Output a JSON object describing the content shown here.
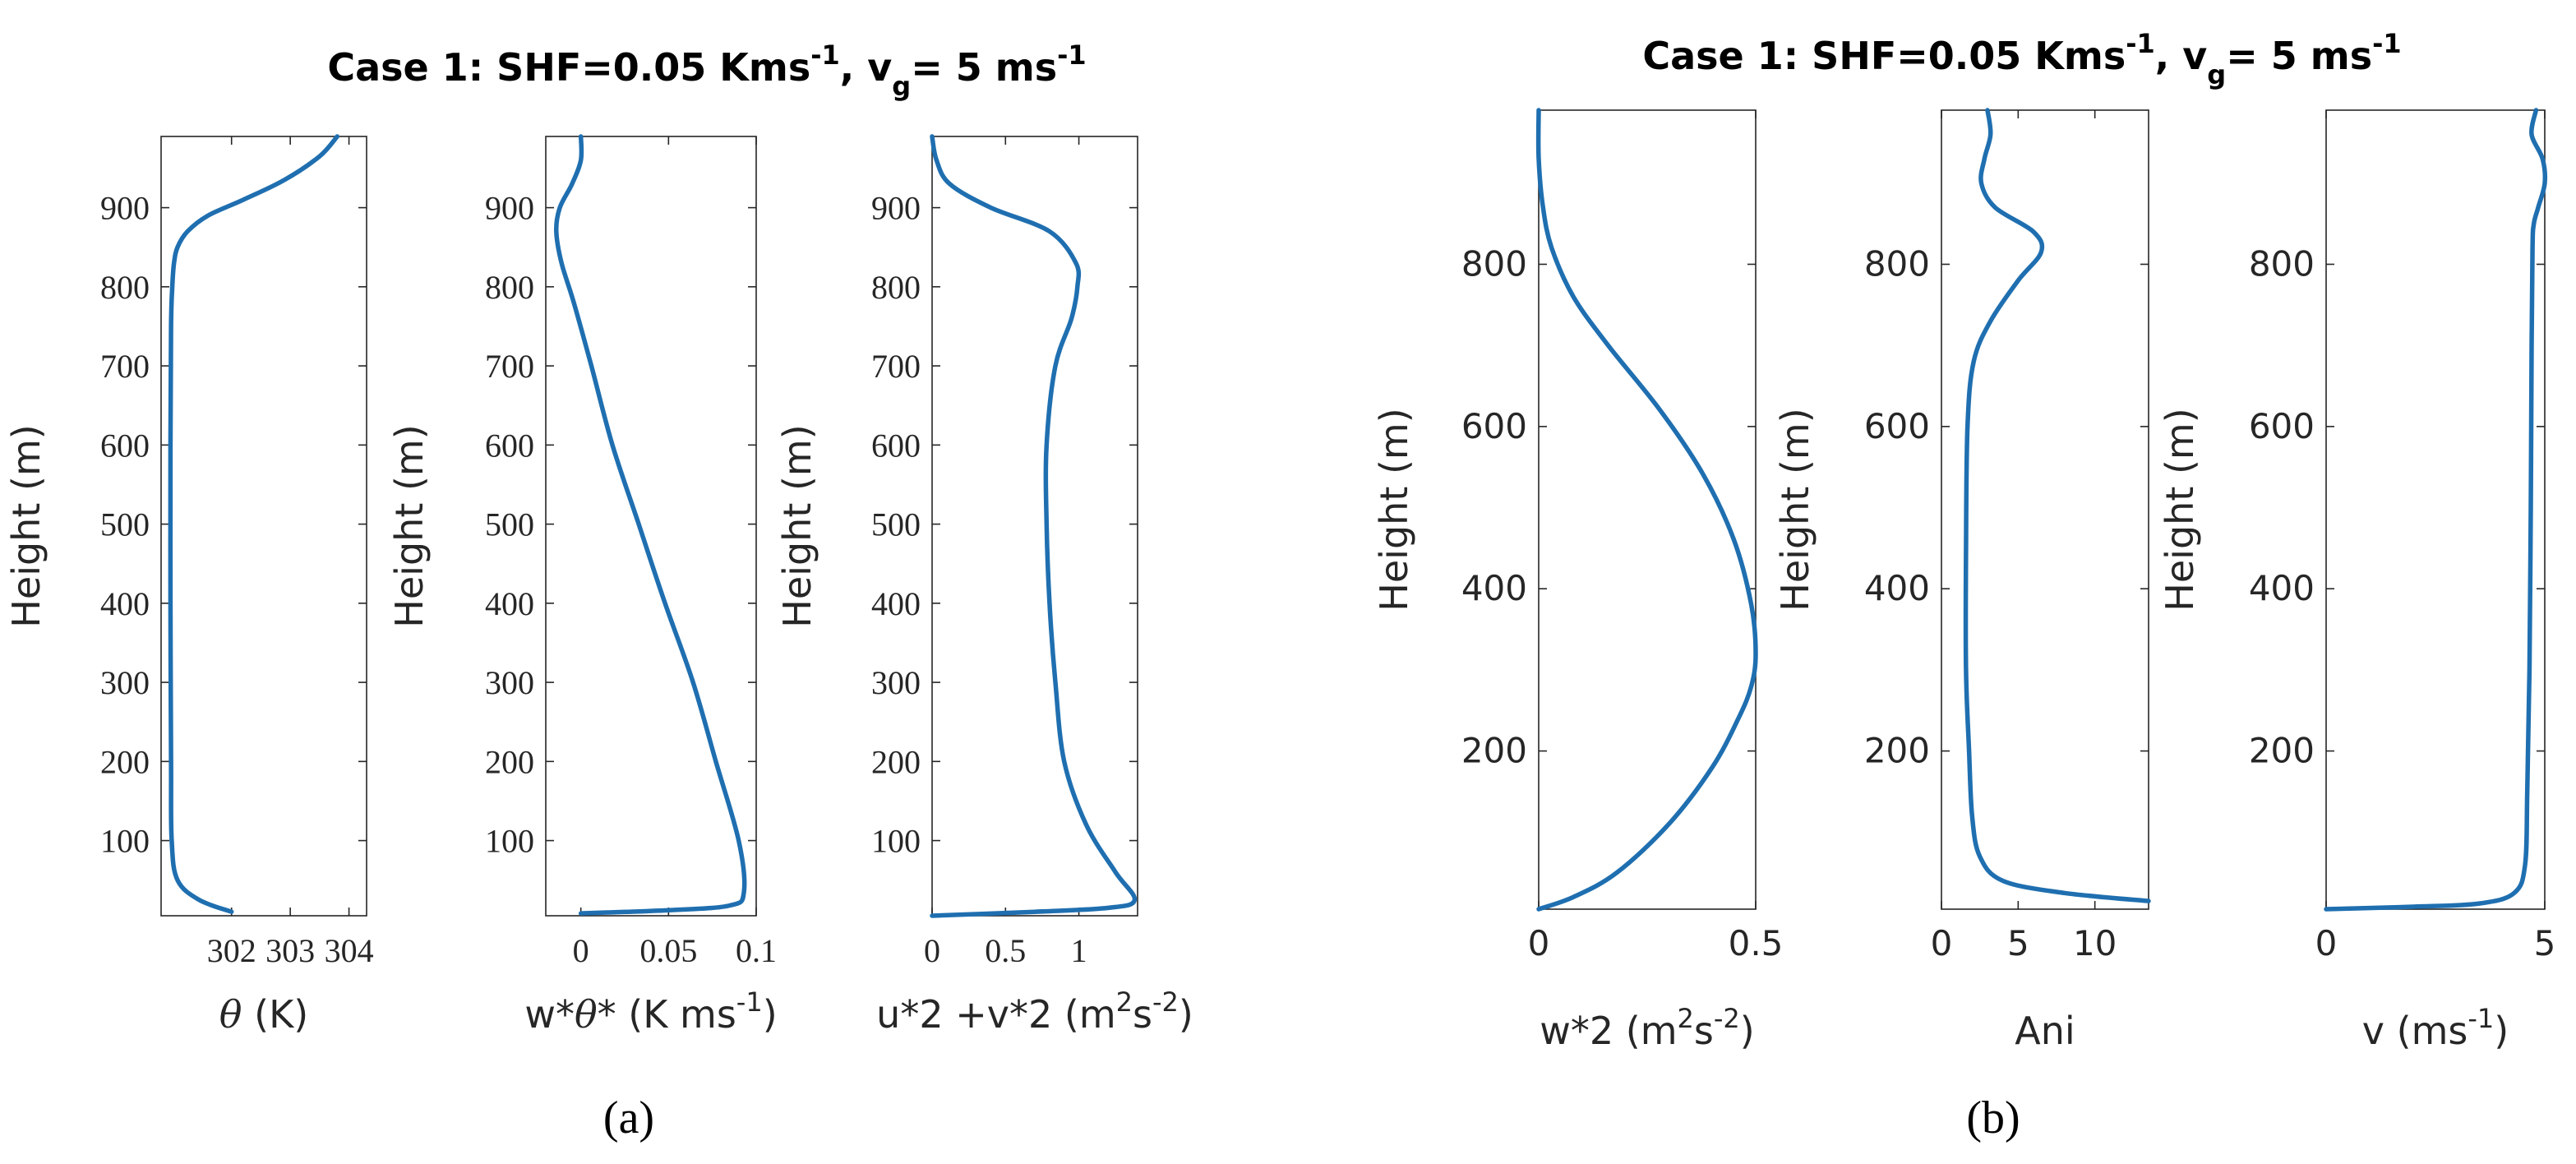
{
  "panel_a": {
    "label": "(a)",
    "title": {
      "main": "Case 1: SHF=0.05 Kms",
      "sup1": "-1",
      "mid": ", v",
      "sub": "g",
      "end": "= 5 ms",
      "sup2": "-1"
    }
  },
  "panel_b": {
    "label": "(b)",
    "title": {
      "main": "Case 1: SHF=0.05 Kms",
      "sup1": "-1",
      "mid": ", v",
      "sub": "g",
      "end": "= 5 ms",
      "sup2": "-1"
    }
  },
  "y_label": "Height (m)",
  "line_color": "#1f6fb0",
  "chart_data": [
    {
      "id": "theta",
      "type": "line",
      "panel": "a",
      "xlabel": {
        "parts": [
          [
            "θ",
            "i"
          ],
          [
            " (K)",
            "n"
          ]
        ]
      },
      "xlim": [
        300.8,
        304.3
      ],
      "ylim": [
        5,
        990
      ],
      "xticks": [
        302,
        303,
        304
      ],
      "xticklabels": [
        "302",
        "303",
        "304"
      ],
      "yticks": [
        100,
        200,
        300,
        400,
        500,
        600,
        700,
        800,
        900
      ],
      "yticklabels": [
        "100",
        "200",
        "300",
        "400",
        "500",
        "600",
        "700",
        "800",
        "900"
      ],
      "tickstyle": "serif",
      "x": [
        302.0,
        301.45,
        301.08,
        300.98,
        300.97,
        300.96,
        300.96,
        300.97,
        300.99,
        301.02,
        301.08,
        301.25,
        301.6,
        302.2,
        302.9,
        303.5,
        303.8
      ],
      "y": [
        10,
        25,
        50,
        100,
        200,
        400,
        600,
        750,
        800,
        830,
        850,
        870,
        890,
        910,
        935,
        965,
        990
      ]
    },
    {
      "id": "wtheta",
      "type": "line",
      "panel": "a",
      "xlabel": {
        "parts": [
          [
            "w*",
            "n"
          ],
          [
            "θ",
            "i"
          ],
          [
            "* (K ms",
            "n"
          ],
          [
            "-1",
            "sup"
          ],
          [
            ")",
            "n"
          ]
        ]
      },
      "xlim": [
        -0.02,
        0.1
      ],
      "ylim": [
        5,
        990
      ],
      "xticks": [
        0,
        0.05,
        0.1
      ],
      "xticklabels": [
        "0",
        "0.05",
        "0.1"
      ],
      "yticks": [
        100,
        200,
        300,
        400,
        500,
        600,
        700,
        800,
        900
      ],
      "yticklabels": [
        "100",
        "200",
        "300",
        "400",
        "500",
        "600",
        "700",
        "800",
        "900"
      ],
      "tickstyle": "serif",
      "x": [
        0.0,
        0.05,
        0.085,
        0.093,
        0.09,
        0.077,
        0.064,
        0.048,
        0.033,
        0.018,
        0.006,
        -0.004,
        -0.011,
        -0.014,
        -0.012,
        -0.005,
        0.0,
        0.0
      ],
      "y": [
        8,
        12,
        18,
        35,
        100,
        200,
        300,
        400,
        500,
        600,
        700,
        780,
        830,
        870,
        900,
        930,
        960,
        990
      ]
    },
    {
      "id": "uv2",
      "type": "line",
      "panel": "a",
      "xlabel": {
        "parts": [
          [
            "u*2 +v*2 (m",
            "n"
          ],
          [
            "2",
            "sup"
          ],
          [
            "s",
            "n"
          ],
          [
            "-2",
            "sup"
          ],
          [
            ")",
            "n"
          ]
        ]
      },
      "xlim": [
        0,
        1.4
      ],
      "ylim": [
        5,
        990
      ],
      "xticks": [
        0,
        0.5,
        1
      ],
      "xticklabels": [
        "0",
        "0.5",
        "1"
      ],
      "yticks": [
        100,
        200,
        300,
        400,
        500,
        600,
        700,
        800,
        900
      ],
      "yticklabels": [
        "100",
        "200",
        "300",
        "400",
        "500",
        "600",
        "700",
        "800",
        "900"
      ],
      "tickstyle": "serif",
      "x": [
        0.0,
        0.7,
        1.2,
        1.38,
        1.25,
        1.05,
        0.9,
        0.84,
        0.8,
        0.78,
        0.78,
        0.84,
        0.95,
        0.99,
        0.98,
        0.8,
        0.4,
        0.12,
        0.03,
        0.0
      ],
      "y": [
        5,
        10,
        15,
        25,
        60,
        120,
        200,
        300,
        400,
        500,
        600,
        700,
        760,
        800,
        830,
        870,
        900,
        930,
        960,
        990
      ]
    },
    {
      "id": "w2",
      "type": "line",
      "panel": "b",
      "xlabel": {
        "parts": [
          [
            "w*2 (m",
            "n"
          ],
          [
            "2",
            "sup"
          ],
          [
            "s",
            "n"
          ],
          [
            "-2",
            "sup"
          ],
          [
            ")",
            "n"
          ]
        ]
      },
      "xlim": [
        0,
        0.5
      ],
      "ylim": [
        5,
        990
      ],
      "xticks": [
        0,
        0.5
      ],
      "xticklabels": [
        "0",
        "0.5"
      ],
      "yticks": [
        200,
        400,
        600,
        800
      ],
      "yticklabels": [
        "200",
        "400",
        "600",
        "800"
      ],
      "tickstyle": "sans",
      "x": [
        0.0,
        0.08,
        0.18,
        0.3,
        0.4,
        0.46,
        0.49,
        0.5,
        0.49,
        0.45,
        0.38,
        0.28,
        0.16,
        0.08,
        0.03,
        0.01,
        0.0,
        0.0
      ],
      "y": [
        5,
        20,
        50,
        110,
        180,
        240,
        280,
        320,
        380,
        460,
        540,
        620,
        700,
        760,
        820,
        870,
        930,
        990
      ]
    },
    {
      "id": "ani",
      "type": "line",
      "panel": "b",
      "xlabel": {
        "parts": [
          [
            "Ani",
            "n"
          ]
        ]
      },
      "xlim": [
        0,
        13.5
      ],
      "ylim": [
        5,
        990
      ],
      "xticks": [
        0,
        5,
        10
      ],
      "xticklabels": [
        "0",
        "5",
        "10"
      ],
      "yticks": [
        200,
        400,
        600,
        800
      ],
      "yticklabels": [
        "200",
        "400",
        "600",
        "800"
      ],
      "tickstyle": "sans",
      "x": [
        13.5,
        8.0,
        4.0,
        2.5,
        2.0,
        1.8,
        1.6,
        1.6,
        1.7,
        2.1,
        3.2,
        5.0,
        6.5,
        6.0,
        3.5,
        2.6,
        2.8,
        3.2,
        3.0
      ],
      "y": [
        15,
        25,
        40,
        70,
        120,
        200,
        300,
        450,
        600,
        680,
        730,
        780,
        815,
        840,
        870,
        900,
        930,
        960,
        990
      ]
    },
    {
      "id": "v",
      "type": "line",
      "panel": "b",
      "xlabel": {
        "parts": [
          [
            "v (ms",
            "n"
          ],
          [
            "-1",
            "sup"
          ],
          [
            ")",
            "n"
          ]
        ]
      },
      "xlim": [
        0,
        5
      ],
      "ylim": [
        5,
        990
      ],
      "xticks": [
        0,
        5
      ],
      "xticklabels": [
        "0",
        "5"
      ],
      "yticks": [
        200,
        400,
        600,
        800
      ],
      "yticklabels": [
        "200",
        "400",
        "600",
        "800"
      ],
      "tickstyle": "sans",
      "x": [
        0.0,
        2.0,
        3.5,
        4.3,
        4.55,
        4.6,
        4.65,
        4.68,
        4.7,
        4.72,
        4.75,
        4.85,
        5.0,
        4.95,
        4.7,
        4.8
      ],
      "y": [
        5,
        8,
        12,
        25,
        60,
        150,
        300,
        500,
        700,
        820,
        850,
        870,
        900,
        930,
        960,
        990
      ]
    }
  ]
}
